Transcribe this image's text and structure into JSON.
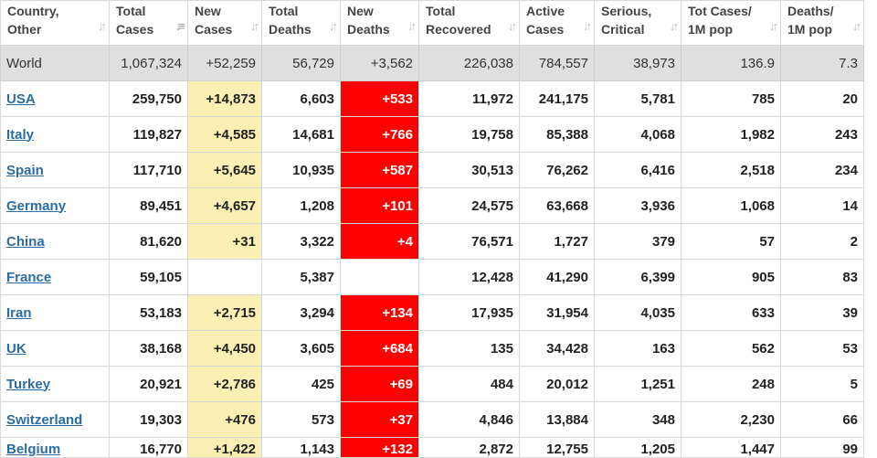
{
  "headers": [
    {
      "line1": "Country,",
      "line2": "Other",
      "sort": "both"
    },
    {
      "line1": "Total",
      "line2": "Cases",
      "sort": "desc"
    },
    {
      "line1": "New",
      "line2": "Cases",
      "sort": "both"
    },
    {
      "line1": "Total",
      "line2": "Deaths",
      "sort": "both"
    },
    {
      "line1": "New",
      "line2": "Deaths",
      "sort": "both"
    },
    {
      "line1": "Total",
      "line2": "Recovered",
      "sort": "both"
    },
    {
      "line1": "Active",
      "line2": "Cases",
      "sort": "both"
    },
    {
      "line1": "Serious,",
      "line2": "Critical",
      "sort": "both"
    },
    {
      "line1": "Tot Cases/",
      "line2": "1M pop",
      "sort": "both"
    },
    {
      "line1": "Deaths/",
      "line2": "1M pop",
      "sort": "both"
    }
  ],
  "sort_icons": {
    "both": "sort-arrows-icon",
    "desc": "sort-descending-icon"
  },
  "colors": {
    "new_cases_highlight": "#fbefb3",
    "new_deaths_highlight": "#ff0000",
    "world_row": "#dfdfdf",
    "link": "#2b6ca3"
  },
  "world": {
    "country": "World",
    "total_cases": "1,067,324",
    "new_cases": "+52,259",
    "total_deaths": "56,729",
    "new_deaths": "+3,562",
    "total_recovered": "226,038",
    "active_cases": "784,557",
    "serious": "38,973",
    "cases_per_1m": "136.9",
    "deaths_per_1m": "7.3"
  },
  "rows": [
    {
      "country": "USA",
      "total_cases": "259,750",
      "new_cases": "+14,873",
      "total_deaths": "6,603",
      "new_deaths": "+533",
      "total_recovered": "11,972",
      "active_cases": "241,175",
      "serious": "5,781",
      "cases_per_1m": "785",
      "deaths_per_1m": "20"
    },
    {
      "country": "Italy",
      "total_cases": "119,827",
      "new_cases": "+4,585",
      "total_deaths": "14,681",
      "new_deaths": "+766",
      "total_recovered": "19,758",
      "active_cases": "85,388",
      "serious": "4,068",
      "cases_per_1m": "1,982",
      "deaths_per_1m": "243"
    },
    {
      "country": "Spain",
      "total_cases": "117,710",
      "new_cases": "+5,645",
      "total_deaths": "10,935",
      "new_deaths": "+587",
      "total_recovered": "30,513",
      "active_cases": "76,262",
      "serious": "6,416",
      "cases_per_1m": "2,518",
      "deaths_per_1m": "234"
    },
    {
      "country": "Germany",
      "total_cases": "89,451",
      "new_cases": "+4,657",
      "total_deaths": "1,208",
      "new_deaths": "+101",
      "total_recovered": "24,575",
      "active_cases": "63,668",
      "serious": "3,936",
      "cases_per_1m": "1,068",
      "deaths_per_1m": "14"
    },
    {
      "country": "China",
      "total_cases": "81,620",
      "new_cases": "+31",
      "total_deaths": "3,322",
      "new_deaths": "+4",
      "total_recovered": "76,571",
      "active_cases": "1,727",
      "serious": "379",
      "cases_per_1m": "57",
      "deaths_per_1m": "2"
    },
    {
      "country": "France",
      "total_cases": "59,105",
      "new_cases": "",
      "total_deaths": "5,387",
      "new_deaths": "",
      "total_recovered": "12,428",
      "active_cases": "41,290",
      "serious": "6,399",
      "cases_per_1m": "905",
      "deaths_per_1m": "83"
    },
    {
      "country": "Iran",
      "total_cases": "53,183",
      "new_cases": "+2,715",
      "total_deaths": "3,294",
      "new_deaths": "+134",
      "total_recovered": "17,935",
      "active_cases": "31,954",
      "serious": "4,035",
      "cases_per_1m": "633",
      "deaths_per_1m": "39"
    },
    {
      "country": "UK",
      "total_cases": "38,168",
      "new_cases": "+4,450",
      "total_deaths": "3,605",
      "new_deaths": "+684",
      "total_recovered": "135",
      "active_cases": "34,428",
      "serious": "163",
      "cases_per_1m": "562",
      "deaths_per_1m": "53"
    },
    {
      "country": "Turkey",
      "total_cases": "20,921",
      "new_cases": "+2,786",
      "total_deaths": "425",
      "new_deaths": "+69",
      "total_recovered": "484",
      "active_cases": "20,012",
      "serious": "1,251",
      "cases_per_1m": "248",
      "deaths_per_1m": "5"
    },
    {
      "country": "Switzerland",
      "total_cases": "19,303",
      "new_cases": "+476",
      "total_deaths": "573",
      "new_deaths": "+37",
      "total_recovered": "4,846",
      "active_cases": "13,884",
      "serious": "348",
      "cases_per_1m": "2,230",
      "deaths_per_1m": "66"
    },
    {
      "country": "Belgium",
      "total_cases": "16,770",
      "new_cases": "+1,422",
      "total_deaths": "1,143",
      "new_deaths": "+132",
      "total_recovered": "2,872",
      "active_cases": "12,755",
      "serious": "1,205",
      "cases_per_1m": "1,447",
      "deaths_per_1m": "99"
    }
  ]
}
